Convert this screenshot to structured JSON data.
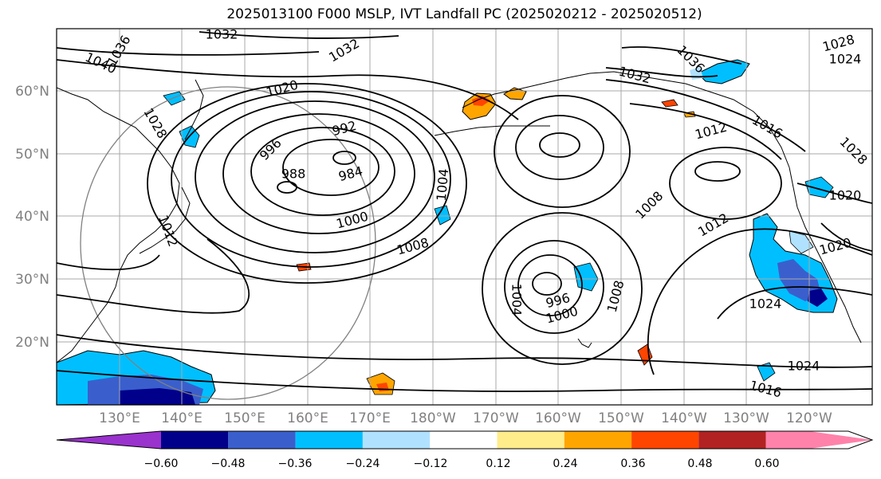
{
  "title": "2025013100 F000 MSLP, IVT Landfall PC (2025020212 - 2025020512)",
  "map": {
    "lat_labels": [
      "60°N",
      "50°N",
      "40°N",
      "30°N",
      "20°N"
    ],
    "lon_labels": [
      "130°E",
      "140°E",
      "150°E",
      "160°E",
      "170°E",
      "180°W",
      "170°W",
      "160°W",
      "150°W",
      "140°W",
      "130°W",
      "120°W"
    ],
    "grid": true,
    "contour_labels": [
      "1032",
      "1040",
      "1036",
      "1032",
      "1020",
      "1028",
      "992",
      "996",
      "988",
      "984",
      "1004",
      "1000",
      "1008",
      "1024",
      "1036",
      "1032",
      "1012",
      "1016",
      "1028",
      "1020",
      "1008",
      "1012",
      "1024",
      "1020",
      "1004",
      "996",
      "1000",
      "1008",
      "1024",
      "1016",
      "1012",
      "1028"
    ]
  },
  "colorbar": {
    "tick_labels": [
      "−0.60",
      "−0.48",
      "−0.36",
      "−0.24",
      "−0.12",
      "0.12",
      "0.24",
      "0.36",
      "0.48",
      "0.60"
    ],
    "bins": [
      {
        "color": "#9a32cd"
      },
      {
        "color": "#00008b"
      },
      {
        "color": "#3a5fcd"
      },
      {
        "color": "#00bfff"
      },
      {
        "color": "#b0e2ff"
      },
      {
        "color": "#ffffff"
      },
      {
        "color": "#ffec8b"
      },
      {
        "color": "#ffa500"
      },
      {
        "color": "#ff4500"
      },
      {
        "color": "#b22222"
      },
      {
        "color": "#ff82ab"
      }
    ]
  }
}
